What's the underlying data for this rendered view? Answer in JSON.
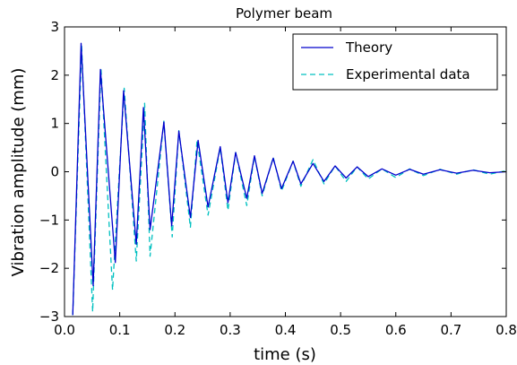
{
  "chart_data": {
    "type": "line",
    "title": "Polymer beam",
    "xlabel": "time (s)",
    "ylabel": "Vibration amplitude (mm)",
    "xlim": [
      0.0,
      0.8
    ],
    "ylim": [
      -3,
      3
    ],
    "xticks": [
      "0.0",
      "0.1",
      "0.2",
      "0.3",
      "0.4",
      "0.5",
      "0.6",
      "0.7",
      "0.8"
    ],
    "yticks": [
      "−3",
      "−2",
      "−1",
      "0",
      "1",
      "2",
      "3"
    ],
    "grid": false,
    "legend_position": "top-right",
    "series": [
      {
        "name": "Theory",
        "color": "#0000cc",
        "style": "solid",
        "x": [
          0.015,
          0.03,
          0.052,
          0.065,
          0.092,
          0.107,
          0.13,
          0.143,
          0.155,
          0.18,
          0.194,
          0.207,
          0.228,
          0.242,
          0.26,
          0.282,
          0.296,
          0.31,
          0.33,
          0.344,
          0.358,
          0.378,
          0.393,
          0.414,
          0.428,
          0.45,
          0.47,
          0.49,
          0.51,
          0.53,
          0.55,
          0.575,
          0.6,
          0.625,
          0.65,
          0.68,
          0.71,
          0.74,
          0.77,
          0.8
        ],
        "y": [
          -2.97,
          2.66,
          -2.36,
          2.12,
          -1.88,
          1.68,
          -1.5,
          1.33,
          -1.2,
          1.03,
          -1.12,
          0.84,
          -0.95,
          0.65,
          -0.73,
          0.52,
          -0.64,
          0.4,
          -0.55,
          0.33,
          -0.45,
          0.28,
          -0.35,
          0.22,
          -0.25,
          0.17,
          -0.2,
          0.12,
          -0.13,
          0.1,
          -0.1,
          0.06,
          -0.07,
          0.05,
          -0.05,
          0.04,
          -0.03,
          0.03,
          -0.02,
          0.0
        ]
      },
      {
        "name": "Experimental data",
        "color": "#00c0c0",
        "style": "dashed",
        "x": [
          0.015,
          0.031,
          0.051,
          0.066,
          0.087,
          0.108,
          0.13,
          0.145,
          0.155,
          0.18,
          0.195,
          0.207,
          0.228,
          0.24,
          0.26,
          0.282,
          0.296,
          0.31,
          0.33,
          0.344,
          0.358,
          0.378,
          0.393,
          0.414,
          0.428,
          0.45,
          0.47,
          0.49,
          0.51,
          0.53,
          0.55,
          0.575,
          0.6,
          0.625,
          0.65,
          0.68,
          0.71,
          0.74,
          0.77,
          0.8
        ],
        "y": [
          -2.97,
          2.6,
          -2.9,
          2.15,
          -2.45,
          1.73,
          -1.85,
          1.42,
          -1.75,
          1.05,
          -1.35,
          0.85,
          -1.15,
          0.65,
          -0.9,
          0.5,
          -0.8,
          0.4,
          -0.7,
          0.32,
          -0.5,
          0.3,
          -0.4,
          0.22,
          -0.3,
          0.25,
          -0.25,
          0.12,
          -0.2,
          0.1,
          -0.15,
          0.06,
          -0.12,
          0.06,
          -0.08,
          0.05,
          -0.05,
          0.04,
          -0.05,
          0.02
        ]
      }
    ]
  }
}
